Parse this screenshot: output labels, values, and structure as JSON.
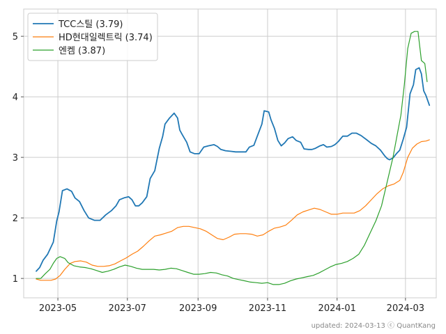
{
  "chart_data": {
    "type": "line",
    "title": "",
    "xlabel": "",
    "ylabel": "",
    "grid": true,
    "legend_position": "top-left",
    "x_range": [
      "2023-04-01",
      "2024-03-28"
    ],
    "ylim": [
      0.68,
      5.45
    ],
    "x_ticks": [
      {
        "date": "2023-05-01",
        "label": "2023-05"
      },
      {
        "date": "2023-07-01",
        "label": "2023-07"
      },
      {
        "date": "2023-09-01",
        "label": "2023-09"
      },
      {
        "date": "2023-11-01",
        "label": "2023-11"
      },
      {
        "date": "2024-01-01",
        "label": "2024-01"
      },
      {
        "date": "2024-03-01",
        "label": "2024-03"
      }
    ],
    "y_ticks": [
      {
        "value": 1,
        "label": "1"
      },
      {
        "value": 2,
        "label": "2"
      },
      {
        "value": 3,
        "label": "3"
      },
      {
        "value": 4,
        "label": "4"
      },
      {
        "value": 5,
        "label": "5"
      }
    ],
    "series": [
      {
        "name": "TCC스틸 (3.79)",
        "color": "#1f77b4",
        "points": [
          [
            "2023-04-12",
            1.12
          ],
          [
            "2023-04-15",
            1.18
          ],
          [
            "2023-04-18",
            1.3
          ],
          [
            "2023-04-22",
            1.4
          ],
          [
            "2023-04-27",
            1.6
          ],
          [
            "2023-04-30",
            1.95
          ],
          [
            "2023-05-02",
            2.1
          ],
          [
            "2023-05-05",
            2.45
          ],
          [
            "2023-05-09",
            2.48
          ],
          [
            "2023-05-13",
            2.44
          ],
          [
            "2023-05-16",
            2.33
          ],
          [
            "2023-05-20",
            2.27
          ],
          [
            "2023-05-24",
            2.12
          ],
          [
            "2023-05-28",
            2.0
          ],
          [
            "2023-06-02",
            1.96
          ],
          [
            "2023-06-07",
            1.96
          ],
          [
            "2023-06-12",
            2.05
          ],
          [
            "2023-06-17",
            2.12
          ],
          [
            "2023-06-21",
            2.2
          ],
          [
            "2023-06-24",
            2.3
          ],
          [
            "2023-06-28",
            2.33
          ],
          [
            "2023-07-02",
            2.35
          ],
          [
            "2023-07-05",
            2.3
          ],
          [
            "2023-07-08",
            2.2
          ],
          [
            "2023-07-11",
            2.2
          ],
          [
            "2023-07-14",
            2.25
          ],
          [
            "2023-07-18",
            2.35
          ],
          [
            "2023-07-21",
            2.65
          ],
          [
            "2023-07-25",
            2.78
          ],
          [
            "2023-07-29",
            3.15
          ],
          [
            "2023-08-01",
            3.35
          ],
          [
            "2023-08-03",
            3.55
          ],
          [
            "2023-08-07",
            3.65
          ],
          [
            "2023-08-11",
            3.73
          ],
          [
            "2023-08-14",
            3.65
          ],
          [
            "2023-08-16",
            3.45
          ],
          [
            "2023-08-18",
            3.38
          ],
          [
            "2023-08-22",
            3.25
          ],
          [
            "2023-08-25",
            3.09
          ],
          [
            "2023-08-29",
            3.06
          ],
          [
            "2023-09-02",
            3.06
          ],
          [
            "2023-09-06",
            3.17
          ],
          [
            "2023-09-10",
            3.19
          ],
          [
            "2023-09-15",
            3.21
          ],
          [
            "2023-09-18",
            3.18
          ],
          [
            "2023-09-21",
            3.13
          ],
          [
            "2023-09-25",
            3.11
          ],
          [
            "2023-09-30",
            3.1
          ],
          [
            "2023-10-04",
            3.09
          ],
          [
            "2023-10-09",
            3.09
          ],
          [
            "2023-10-13",
            3.09
          ],
          [
            "2023-10-16",
            3.17
          ],
          [
            "2023-10-20",
            3.2
          ],
          [
            "2023-10-23",
            3.35
          ],
          [
            "2023-10-27",
            3.55
          ],
          [
            "2023-10-29",
            3.77
          ],
          [
            "2023-11-02",
            3.75
          ],
          [
            "2023-11-04",
            3.62
          ],
          [
            "2023-11-07",
            3.48
          ],
          [
            "2023-11-10",
            3.28
          ],
          [
            "2023-11-13",
            3.19
          ],
          [
            "2023-11-16",
            3.24
          ],
          [
            "2023-11-19",
            3.31
          ],
          [
            "2023-11-23",
            3.34
          ],
          [
            "2023-11-26",
            3.28
          ],
          [
            "2023-11-30",
            3.25
          ],
          [
            "2023-12-03",
            3.14
          ],
          [
            "2023-12-07",
            3.13
          ],
          [
            "2023-12-10",
            3.13
          ],
          [
            "2023-12-13",
            3.15
          ],
          [
            "2023-12-17",
            3.19
          ],
          [
            "2023-12-20",
            3.21
          ],
          [
            "2023-12-23",
            3.17
          ],
          [
            "2023-12-27",
            3.18
          ],
          [
            "2023-12-30",
            3.21
          ],
          [
            "2024-01-02",
            3.26
          ],
          [
            "2024-01-06",
            3.35
          ],
          [
            "2024-01-10",
            3.35
          ],
          [
            "2024-01-14",
            3.4
          ],
          [
            "2024-01-18",
            3.4
          ],
          [
            "2024-01-22",
            3.36
          ],
          [
            "2024-01-27",
            3.29
          ],
          [
            "2024-01-31",
            3.23
          ],
          [
            "2024-02-04",
            3.19
          ],
          [
            "2024-02-08",
            3.12
          ],
          [
            "2024-02-12",
            3.02
          ],
          [
            "2024-02-14",
            2.98
          ],
          [
            "2024-02-16",
            2.96
          ],
          [
            "2024-02-19",
            2.99
          ],
          [
            "2024-02-22",
            3.06
          ],
          [
            "2024-02-25",
            3.12
          ],
          [
            "2024-02-28",
            3.3
          ],
          [
            "2024-03-02",
            3.5
          ],
          [
            "2024-03-05",
            4.05
          ],
          [
            "2024-03-08",
            4.2
          ],
          [
            "2024-03-10",
            4.45
          ],
          [
            "2024-03-13",
            4.48
          ],
          [
            "2024-03-15",
            4.38
          ],
          [
            "2024-03-17",
            4.1
          ],
          [
            "2024-03-19",
            4.02
          ],
          [
            "2024-03-22",
            3.86
          ]
        ]
      },
      {
        "name": "HD현대일렉트릭 (3.74)",
        "color": "#ff7f0e",
        "points": [
          [
            "2023-04-12",
            0.99
          ],
          [
            "2023-04-16",
            0.97
          ],
          [
            "2023-04-20",
            0.97
          ],
          [
            "2023-04-25",
            0.97
          ],
          [
            "2023-04-29",
            0.99
          ],
          [
            "2023-05-03",
            1.05
          ],
          [
            "2023-05-07",
            1.15
          ],
          [
            "2023-05-12",
            1.25
          ],
          [
            "2023-05-16",
            1.28
          ],
          [
            "2023-05-21",
            1.29
          ],
          [
            "2023-05-26",
            1.27
          ],
          [
            "2023-05-31",
            1.22
          ],
          [
            "2023-06-05",
            1.2
          ],
          [
            "2023-06-10",
            1.2
          ],
          [
            "2023-06-15",
            1.21
          ],
          [
            "2023-06-20",
            1.24
          ],
          [
            "2023-06-25",
            1.29
          ],
          [
            "2023-06-30",
            1.34
          ],
          [
            "2023-07-05",
            1.4
          ],
          [
            "2023-07-10",
            1.45
          ],
          [
            "2023-07-15",
            1.53
          ],
          [
            "2023-07-20",
            1.62
          ],
          [
            "2023-07-25",
            1.7
          ],
          [
            "2023-07-30",
            1.72
          ],
          [
            "2023-08-04",
            1.75
          ],
          [
            "2023-08-09",
            1.78
          ],
          [
            "2023-08-14",
            1.84
          ],
          [
            "2023-08-19",
            1.86
          ],
          [
            "2023-08-24",
            1.86
          ],
          [
            "2023-08-29",
            1.84
          ],
          [
            "2023-09-03",
            1.82
          ],
          [
            "2023-09-08",
            1.78
          ],
          [
            "2023-09-13",
            1.72
          ],
          [
            "2023-09-18",
            1.66
          ],
          [
            "2023-09-23",
            1.64
          ],
          [
            "2023-09-28",
            1.68
          ],
          [
            "2023-10-03",
            1.73
          ],
          [
            "2023-10-08",
            1.74
          ],
          [
            "2023-10-13",
            1.74
          ],
          [
            "2023-10-18",
            1.73
          ],
          [
            "2023-10-23",
            1.7
          ],
          [
            "2023-10-28",
            1.72
          ],
          [
            "2023-11-02",
            1.78
          ],
          [
            "2023-11-07",
            1.83
          ],
          [
            "2023-11-12",
            1.85
          ],
          [
            "2023-11-17",
            1.88
          ],
          [
            "2023-11-22",
            1.96
          ],
          [
            "2023-11-27",
            2.05
          ],
          [
            "2023-12-02",
            2.1
          ],
          [
            "2023-12-07",
            2.13
          ],
          [
            "2023-12-12",
            2.16
          ],
          [
            "2023-12-17",
            2.14
          ],
          [
            "2023-12-22",
            2.1
          ],
          [
            "2023-12-27",
            2.06
          ],
          [
            "2024-01-01",
            2.06
          ],
          [
            "2024-01-06",
            2.08
          ],
          [
            "2024-01-11",
            2.08
          ],
          [
            "2024-01-16",
            2.08
          ],
          [
            "2024-01-21",
            2.12
          ],
          [
            "2024-01-26",
            2.2
          ],
          [
            "2024-01-31",
            2.3
          ],
          [
            "2024-02-05",
            2.4
          ],
          [
            "2024-02-10",
            2.48
          ],
          [
            "2024-02-15",
            2.53
          ],
          [
            "2024-02-20",
            2.56
          ],
          [
            "2024-02-25",
            2.62
          ],
          [
            "2024-02-28",
            2.75
          ],
          [
            "2024-03-03",
            3.0
          ],
          [
            "2024-03-07",
            3.15
          ],
          [
            "2024-03-11",
            3.22
          ],
          [
            "2024-03-15",
            3.26
          ],
          [
            "2024-03-19",
            3.27
          ],
          [
            "2024-03-22",
            3.29
          ]
        ]
      },
      {
        "name": "엔켐 (3.87)",
        "color": "#2ca02c",
        "points": [
          [
            "2023-04-12",
            1.0
          ],
          [
            "2023-04-16",
            1.0
          ],
          [
            "2023-04-20",
            1.08
          ],
          [
            "2023-04-24",
            1.15
          ],
          [
            "2023-04-27",
            1.25
          ],
          [
            "2023-04-30",
            1.33
          ],
          [
            "2023-05-03",
            1.36
          ],
          [
            "2023-05-07",
            1.33
          ],
          [
            "2023-05-10",
            1.26
          ],
          [
            "2023-05-15",
            1.21
          ],
          [
            "2023-05-20",
            1.19
          ],
          [
            "2023-05-25",
            1.18
          ],
          [
            "2023-05-30",
            1.16
          ],
          [
            "2023-06-04",
            1.13
          ],
          [
            "2023-06-09",
            1.1
          ],
          [
            "2023-06-14",
            1.12
          ],
          [
            "2023-06-19",
            1.15
          ],
          [
            "2023-06-24",
            1.19
          ],
          [
            "2023-06-29",
            1.22
          ],
          [
            "2023-07-04",
            1.2
          ],
          [
            "2023-07-09",
            1.17
          ],
          [
            "2023-07-14",
            1.15
          ],
          [
            "2023-07-19",
            1.15
          ],
          [
            "2023-07-24",
            1.15
          ],
          [
            "2023-07-29",
            1.14
          ],
          [
            "2023-08-03",
            1.15
          ],
          [
            "2023-08-08",
            1.17
          ],
          [
            "2023-08-13",
            1.16
          ],
          [
            "2023-08-18",
            1.13
          ],
          [
            "2023-08-23",
            1.1
          ],
          [
            "2023-08-28",
            1.07
          ],
          [
            "2023-09-02",
            1.07
          ],
          [
            "2023-09-07",
            1.08
          ],
          [
            "2023-09-12",
            1.1
          ],
          [
            "2023-09-17",
            1.09
          ],
          [
            "2023-09-22",
            1.06
          ],
          [
            "2023-09-27",
            1.04
          ],
          [
            "2023-10-02",
            1.0
          ],
          [
            "2023-10-07",
            0.98
          ],
          [
            "2023-10-12",
            0.96
          ],
          [
            "2023-10-17",
            0.94
          ],
          [
            "2023-10-22",
            0.93
          ],
          [
            "2023-10-27",
            0.92
          ],
          [
            "2023-11-01",
            0.93
          ],
          [
            "2023-11-06",
            0.9
          ],
          [
            "2023-11-11",
            0.9
          ],
          [
            "2023-11-16",
            0.92
          ],
          [
            "2023-11-21",
            0.96
          ],
          [
            "2023-11-26",
            0.99
          ],
          [
            "2023-12-01",
            1.01
          ],
          [
            "2023-12-06",
            1.03
          ],
          [
            "2023-12-11",
            1.05
          ],
          [
            "2023-12-16",
            1.09
          ],
          [
            "2023-12-21",
            1.14
          ],
          [
            "2023-12-26",
            1.19
          ],
          [
            "2023-12-31",
            1.23
          ],
          [
            "2024-01-05",
            1.25
          ],
          [
            "2024-01-10",
            1.28
          ],
          [
            "2024-01-15",
            1.33
          ],
          [
            "2024-01-20",
            1.4
          ],
          [
            "2024-01-25",
            1.55
          ],
          [
            "2024-01-30",
            1.75
          ],
          [
            "2024-02-04",
            1.95
          ],
          [
            "2024-02-09",
            2.2
          ],
          [
            "2024-02-14",
            2.6
          ],
          [
            "2024-02-19",
            3.0
          ],
          [
            "2024-02-23",
            3.4
          ],
          [
            "2024-02-26",
            3.7
          ],
          [
            "2024-02-29",
            4.2
          ],
          [
            "2024-03-03",
            4.8
          ],
          [
            "2024-03-06",
            5.05
          ],
          [
            "2024-03-09",
            5.08
          ],
          [
            "2024-03-12",
            5.08
          ],
          [
            "2024-03-15",
            4.6
          ],
          [
            "2024-03-18",
            4.55
          ],
          [
            "2024-03-20",
            4.25
          ]
        ]
      }
    ]
  },
  "footer": {
    "text": "updated: 2024-03-13 ⓒ QuantKang"
  }
}
